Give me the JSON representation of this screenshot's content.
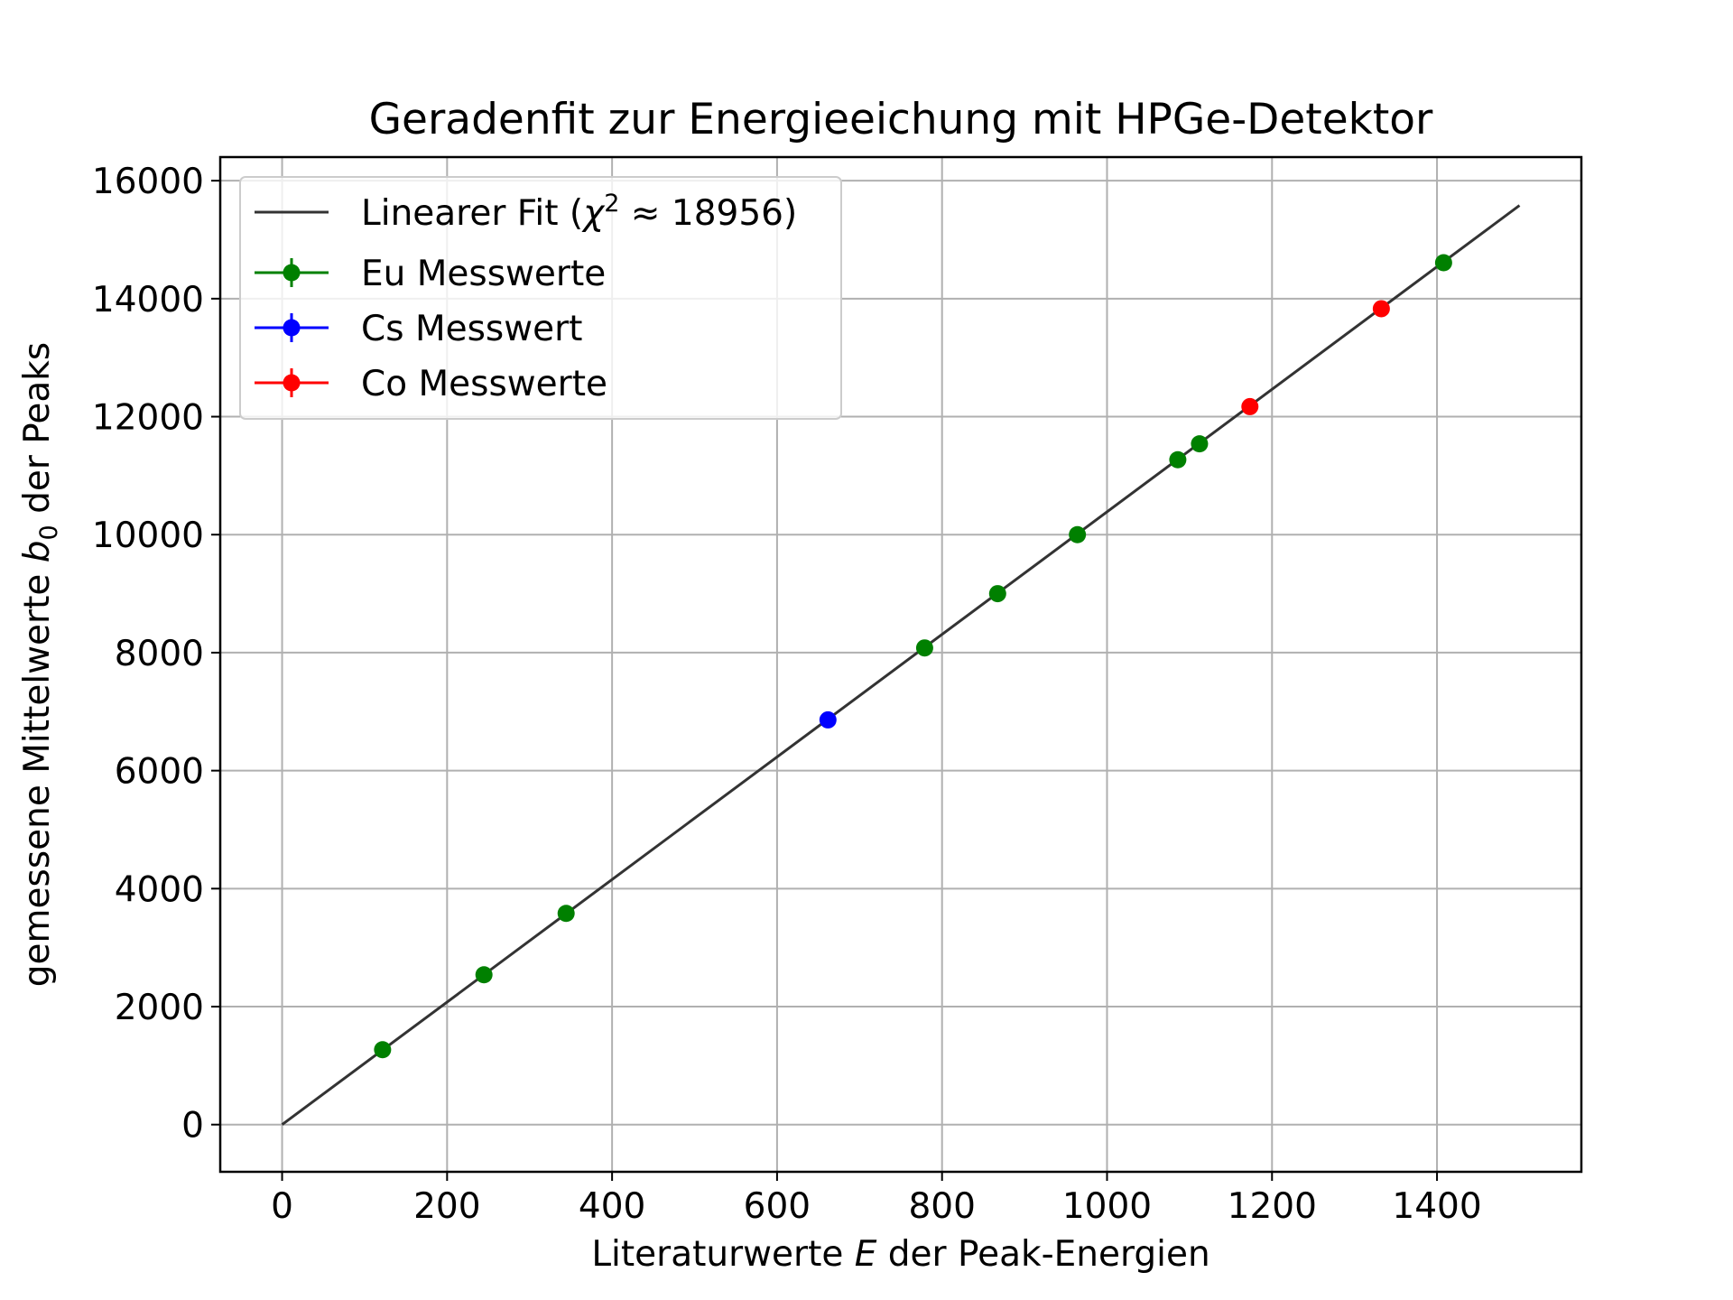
{
  "chart_data": {
    "type": "scatter",
    "title": "Geradenfit zur Energieeichung mit HPGe-Detektor",
    "xlabel": {
      "pre": "Literaturwerte ",
      "var": "E",
      "post": " der Peak-Energien"
    },
    "ylabel": {
      "pre": "gemessene Mittelwerte ",
      "var": "b",
      "sub": "0",
      "post": " der Peaks"
    },
    "xlim": [
      -75,
      1575
    ],
    "ylim": [
      -800,
      16400
    ],
    "xticks": [
      0,
      200,
      400,
      600,
      800,
      1000,
      1200,
      1400
    ],
    "yticks": [
      0,
      2000,
      4000,
      6000,
      8000,
      10000,
      12000,
      14000,
      16000
    ],
    "grid": true,
    "legend_position": "top-left",
    "fit": {
      "name": {
        "pre": "Linearer Fit (",
        "chi": "χ",
        "sup": "2",
        "post": " ≈ 18956)"
      },
      "color": "#333333",
      "x": [
        0,
        1500
      ],
      "y": [
        0,
        15580
      ]
    },
    "series": [
      {
        "name": "Eu Messwerte",
        "color": "#008000",
        "x": [
          121.8,
          244.7,
          344.3,
          778.9,
          867.4,
          964.1,
          1085.8,
          1112.1,
          1408.0
        ],
        "y": [
          1270,
          2540,
          3580,
          8080,
          9000,
          10000,
          11270,
          11540,
          14610
        ]
      },
      {
        "name": "Cs Messwert",
        "color": "#0000ff",
        "x": [
          661.7
        ],
        "y": [
          6860
        ]
      },
      {
        "name": "Co Messwerte",
        "color": "#ff0000",
        "x": [
          1173.2,
          1332.5
        ],
        "y": [
          12170,
          13830
        ]
      }
    ]
  }
}
